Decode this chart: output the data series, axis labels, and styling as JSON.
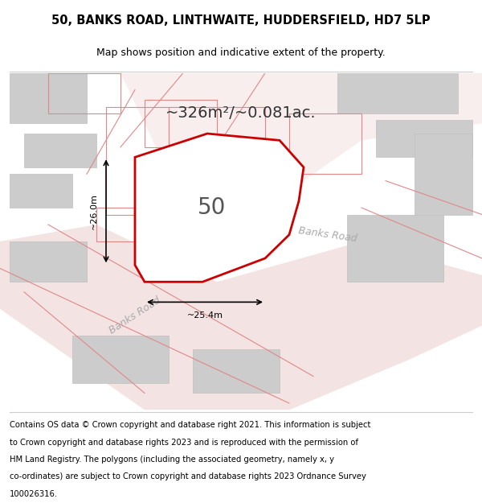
{
  "title_line1": "50, BANKS ROAD, LINTHWAITE, HUDDERSFIELD, HD7 5LP",
  "title_line2": "Map shows position and indicative extent of the property.",
  "area_text": "~326m²/~0.081ac.",
  "number_label": "50",
  "dim_horiz": "~25.4m",
  "dim_vert": "~26.0m",
  "road_label1": "Banks Road",
  "road_label2": "Banks Road",
  "footer_lines": [
    "Contains OS data © Crown copyright and database right 2021. This information is subject",
    "to Crown copyright and database rights 2023 and is reproduced with the permission of",
    "HM Land Registry. The polygons (including the associated geometry, namely x, y",
    "co-ordinates) are subject to Crown copyright and database rights 2023 Ordnance Survey",
    "100026316."
  ],
  "bg_color": "#f8f4f4",
  "map_bg": "#f8f4f4",
  "road_color": "#e8c8c8",
  "building_color": "#cccccc",
  "plot_outline_color": "#cc0000",
  "plot_fill_color": "#ffffff",
  "footer_bg": "#ffffff",
  "title_bg": "#ffffff",
  "pink_line_color": "#e08888",
  "dim_line_color": "#000000",
  "road_text_color": "#aaaaaa",
  "number_color": "#555555",
  "area_text_color": "#333333"
}
